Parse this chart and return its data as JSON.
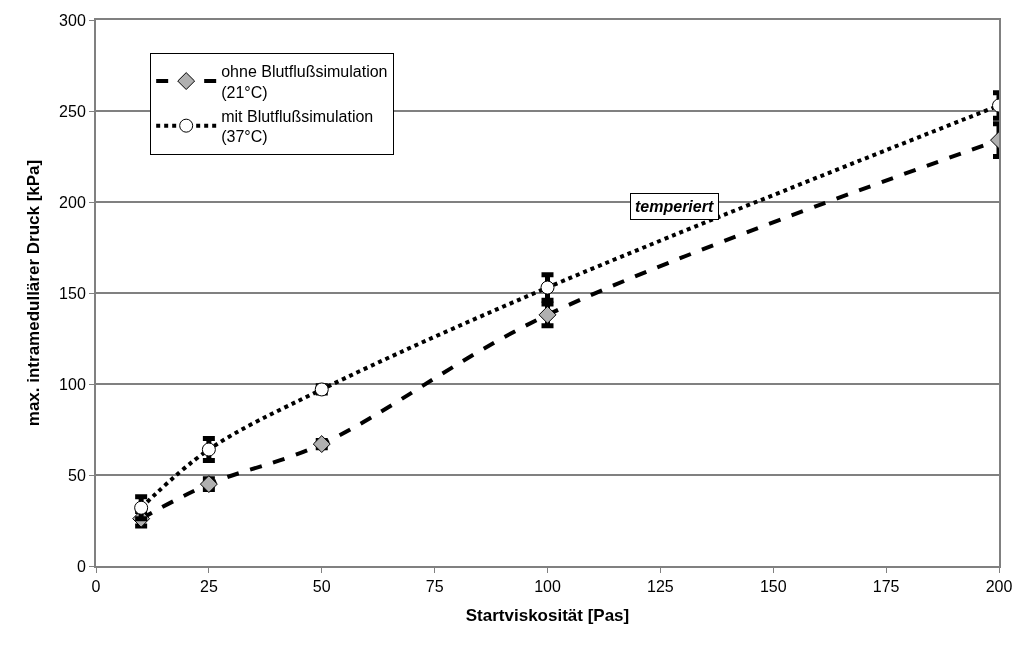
{
  "chart_data": {
    "type": "line",
    "xlabel": "Startviskosität [Pas]",
    "ylabel": "max. intramedullärer Druck [kPa]",
    "x": [
      10,
      25,
      50,
      100,
      200
    ],
    "series": [
      {
        "name": "ohne Blutflußsimulation (21°C)",
        "color": "#000000",
        "marker": "diamond",
        "line_style": "dashed",
        "values": [
          26,
          45,
          67,
          138,
          234
        ],
        "errors": [
          4,
          3,
          2,
          6,
          9
        ]
      },
      {
        "name": "mit Blutflußsimulation (37°C)",
        "color": "#000000",
        "marker": "circle",
        "line_style": "dotted",
        "values": [
          32,
          64,
          97,
          153,
          253
        ],
        "errors": [
          6,
          6,
          2,
          7,
          7
        ]
      }
    ],
    "xlim": [
      0,
      200
    ],
    "xticks": [
      0,
      25,
      50,
      75,
      100,
      125,
      150,
      175,
      200
    ],
    "ylim": [
      0,
      300
    ],
    "yticks": [
      0,
      50,
      100,
      150,
      200,
      250,
      300
    ],
    "grid": "y",
    "legend": "top left",
    "annotations": [
      "temperiert"
    ]
  }
}
